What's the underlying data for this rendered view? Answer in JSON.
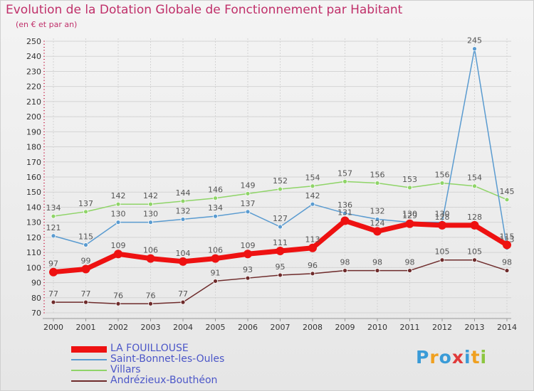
{
  "title": "Evolution de la Dotation Globale de Fonctionnement par Habitant",
  "subtitle": "(en € et par an)",
  "logo": {
    "text": "Proxiti",
    "colors": [
      "#3a9bd7",
      "#f0a020",
      "#3a9bd7",
      "#e03a3a",
      "#3a9bd7",
      "#f0a020",
      "#8cc63f"
    ]
  },
  "chart_data": {
    "type": "line",
    "x": [
      "2000",
      "2001",
      "2002",
      "2003",
      "2004",
      "2005",
      "2006",
      "2007",
      "2008",
      "2009",
      "2010",
      "2011",
      "2012",
      "2013",
      "2014"
    ],
    "ylim": [
      70,
      250
    ],
    "yticks": [
      70,
      80,
      90,
      100,
      110,
      120,
      130,
      140,
      150,
      160,
      170,
      180,
      190,
      200,
      210,
      220,
      230,
      240,
      250
    ],
    "grid": true,
    "legend_position": "bottom-left",
    "series": [
      {
        "name": "Villars",
        "color": "#8fd468",
        "width": 1.5,
        "values": [
          134,
          137,
          142,
          142,
          144,
          146,
          149,
          152,
          154,
          157,
          156,
          153,
          156,
          154,
          145
        ]
      },
      {
        "name": "Saint-Bonnet-les-Oules",
        "color": "#5a9bd0",
        "width": 1.5,
        "values": [
          121,
          115,
          130,
          130,
          132,
          134,
          137,
          127,
          142,
          136,
          132,
          130,
          130,
          245,
          113
        ]
      },
      {
        "name": "Andrézieux-Bouthéon",
        "color": "#6e2b2b",
        "width": 1.5,
        "values": [
          77,
          77,
          76,
          76,
          77,
          91,
          93,
          95,
          96,
          98,
          98,
          98,
          105,
          105,
          98
        ]
      },
      {
        "name": "LA FOUILLOUSE",
        "color": "#ee1111",
        "width": 7,
        "values": [
          97,
          99,
          109,
          106,
          104,
          106,
          109,
          111,
          113,
          131,
          124,
          129,
          128,
          128,
          115
        ]
      }
    ],
    "legend_order": [
      "LA FOUILLOUSE",
      "Saint-Bonnet-les-Oules",
      "Villars",
      "Andrézieux-Bouthéon"
    ]
  }
}
